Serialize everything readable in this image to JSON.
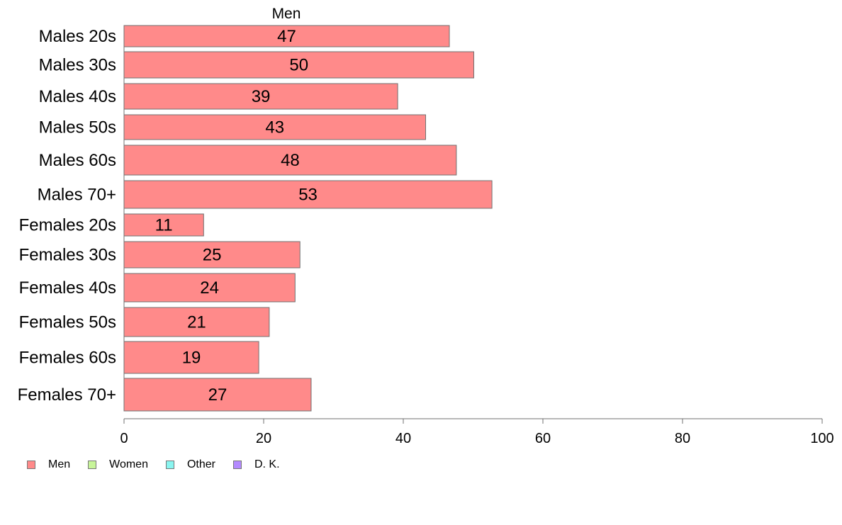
{
  "chart_data": {
    "type": "bar",
    "orientation": "horizontal",
    "series_label": "Men",
    "categories": [
      "Males 20s",
      "Males 30s",
      "Males 40s",
      "Males 50s",
      "Males 60s",
      "Males 70+",
      "Females 20s",
      "Females 30s",
      "Females 40s",
      "Females 50s",
      "Females 60s",
      "Females 70+"
    ],
    "values": [
      46.6,
      50.1,
      39.2,
      43.2,
      47.6,
      52.7,
      11.4,
      25.2,
      24.5,
      20.8,
      19.3,
      26.8
    ],
    "data_labels": [
      "47",
      "50",
      "39",
      "43",
      "48",
      "53",
      "11",
      "25",
      "24",
      "21",
      "19",
      "27"
    ],
    "xlim": [
      0,
      100
    ],
    "xticks": [
      "0",
      "20",
      "40",
      "60",
      "80",
      "100"
    ],
    "grid": false,
    "bar_color": "#ff8a8a",
    "legend": {
      "placement": "bottom-left",
      "items": [
        {
          "label": "Men",
          "color": "#ff8a8a"
        },
        {
          "label": "Women",
          "color": "#c8f59a"
        },
        {
          "label": "Other",
          "color": "#8af5f0"
        },
        {
          "label": "D. K.",
          "color": "#b48aff"
        }
      ]
    }
  }
}
